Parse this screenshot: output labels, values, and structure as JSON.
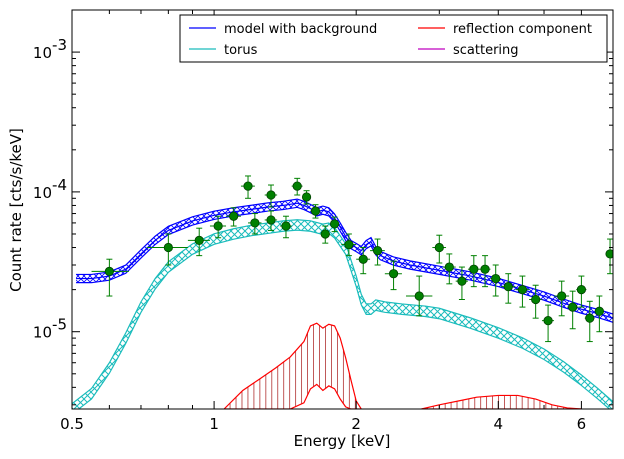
{
  "chart_data": {
    "type": "line",
    "title": "",
    "xlabel": "Energy [keV]",
    "ylabel": "Count rate [cts/s/keV]",
    "xscale": "log",
    "yscale": "log",
    "xlim": [
      0.5,
      7.0
    ],
    "ylim": [
      2.8e-06,
      0.002
    ],
    "x_ticks": [
      0.5,
      1,
      2,
      4,
      6
    ],
    "x_tick_labels": [
      "0.5",
      "1",
      "2",
      "4",
      "6"
    ],
    "y_ticks": [
      1e-05,
      0.0001,
      0.001
    ],
    "y_tick_labels": [
      "10",
      "10",
      "10"
    ],
    "y_tick_exponents": [
      "-5",
      "-4",
      "-3"
    ],
    "grid": false,
    "legend_position": "top-right",
    "legend_columns": 2,
    "colors": {
      "model": "#0000ff",
      "torus": "#1bbcbc",
      "reflection": "#ff0000",
      "scattering": "#bf00bf",
      "data_marker": "#008000",
      "data_edge": "#004000",
      "error_bar": "#008000"
    },
    "series": [
      {
        "name": "model with background",
        "color": "#0000ff",
        "x": [
          0.51,
          0.55,
          0.6,
          0.65,
          0.7,
          0.75,
          0.8,
          0.9,
          1.0,
          1.1,
          1.2,
          1.3,
          1.4,
          1.5,
          1.55,
          1.6,
          1.65,
          1.7,
          1.75,
          1.8,
          1.85,
          1.9,
          1.95,
          2.0,
          2.05,
          2.1,
          2.15,
          2.2,
          2.25,
          2.3,
          2.4,
          2.6,
          3.0,
          3.5,
          4.0,
          4.5,
          5.0,
          5.5,
          6.0,
          6.5,
          7.0
        ],
        "y": [
          2.4e-05,
          2.4e-05,
          2.5e-05,
          2.8e-05,
          3.6e-05,
          4.5e-05,
          5.3e-05,
          6.2e-05,
          6.8e-05,
          7.2e-05,
          7.5e-05,
          7.8e-05,
          8e-05,
          8.3e-05,
          8e-05,
          7.6e-05,
          7.2e-05,
          7.4e-05,
          7.2e-05,
          6.5e-05,
          5.6e-05,
          4.8e-05,
          4.2e-05,
          4e-05,
          3.8e-05,
          4.2e-05,
          4.4e-05,
          3.8e-05,
          3.5e-05,
          3.4e-05,
          3.2e-05,
          3e-05,
          2.75e-05,
          2.5e-05,
          2.25e-05,
          2e-05,
          1.8e-05,
          1.6e-05,
          1.45e-05,
          1.35e-05,
          1.25e-05
        ],
        "band_factor": 1.07
      },
      {
        "name": "torus",
        "color": "#1bbcbc",
        "x": [
          0.5,
          0.55,
          0.6,
          0.65,
          0.7,
          0.75,
          0.8,
          0.9,
          1.0,
          1.1,
          1.2,
          1.3,
          1.4,
          1.5,
          1.6,
          1.7,
          1.75,
          1.8,
          1.9,
          2.0,
          2.05,
          2.1,
          2.15,
          2.2,
          2.3,
          2.5,
          2.8,
          3.0,
          3.5,
          4.0,
          4.5,
          5.0,
          5.5,
          6.0,
          6.5,
          7.0
        ],
        "y": [
          2.8e-06,
          3.6e-06,
          5.5e-06,
          9e-06,
          1.5e-05,
          2.2e-05,
          2.9e-05,
          3.9e-05,
          4.6e-05,
          5e-05,
          5.3e-05,
          5.5e-05,
          5.7e-05,
          5.8e-05,
          5.7e-05,
          5.4e-05,
          5.5e-05,
          5.1e-05,
          3.9e-05,
          2.3e-05,
          1.7e-05,
          1.45e-05,
          1.45e-05,
          1.55e-05,
          1.5e-05,
          1.45e-05,
          1.4e-05,
          1.35e-05,
          1.15e-05,
          9.8e-06,
          8.3e-06,
          6.9e-06,
          5.6e-06,
          4.5e-06,
          3.6e-06,
          2.9e-06
        ],
        "band_factor": 1.09
      },
      {
        "name": "reflection component",
        "color": "#ff0000",
        "segments": [
          {
            "x": [
              1.05,
              1.15,
              1.25,
              1.35,
              1.45,
              1.55,
              1.6,
              1.65,
              1.7,
              1.75,
              1.8,
              1.85,
              1.9,
              1.95,
              2.0,
              2.05
            ],
            "y_upper": [
              2.8e-06,
              3.8e-06,
              4.6e-06,
              5.5e-06,
              6.6e-06,
              8.5e-06,
              1.1e-05,
              1.15e-05,
              1.06e-05,
              1.13e-05,
              1.1e-05,
              9e-06,
              6.5e-06,
              4.5e-06,
              3.2e-06,
              2.8e-06
            ],
            "y_lower": [
              2.8e-06,
              2.8e-06,
              2.8e-06,
              2.8e-06,
              2.8e-06,
              3.1e-06,
              3.9e-06,
              4.2e-06,
              3.8e-06,
              4.1e-06,
              3.9e-06,
              3.3e-06,
              2.9e-06,
              2.8e-06,
              2.8e-06,
              2.8e-06
            ]
          },
          {
            "x": [
              2.75,
              3.0,
              3.3,
              3.6,
              4.0,
              4.4,
              4.8,
              5.2,
              5.6,
              6.0
            ],
            "y_upper": [
              2.8e-06,
              3e-06,
              3.2e-06,
              3.4e-06,
              3.5e-06,
              3.5e-06,
              3.3e-06,
              3e-06,
              2.85e-06,
              2.8e-06
            ],
            "y_lower": [
              2.8e-06,
              2.8e-06,
              2.8e-06,
              2.8e-06,
              2.8e-06,
              2.8e-06,
              2.8e-06,
              2.8e-06,
              2.8e-06,
              2.8e-06
            ]
          }
        ]
      },
      {
        "name": "scattering",
        "color": "#bf00bf",
        "x": [],
        "y": []
      }
    ],
    "data_points": [
      {
        "x": 0.6,
        "y": 2.7e-05,
        "xerr": [
          0.55,
          0.66
        ],
        "yerr": [
          1.8e-05,
          3.3e-05
        ]
      },
      {
        "x": 0.8,
        "y": 4e-05,
        "xerr": [
          0.72,
          0.88
        ],
        "yerr": [
          3e-05,
          5e-05
        ]
      },
      {
        "x": 0.93,
        "y": 4.5e-05,
        "xerr": [
          0.88,
          0.98
        ],
        "yerr": [
          3.5e-05,
          5.5e-05
        ]
      },
      {
        "x": 1.02,
        "y": 5.7e-05,
        "xerr": [
          0.98,
          1.06
        ],
        "yerr": [
          4.7e-05,
          6.7e-05
        ]
      },
      {
        "x": 1.1,
        "y": 6.7e-05,
        "xerr": [
          1.06,
          1.14
        ],
        "yerr": [
          5.7e-05,
          7.7e-05
        ]
      },
      {
        "x": 1.18,
        "y": 0.00011,
        "xerr": [
          1.14,
          1.22
        ],
        "yerr": [
          9e-05,
          0.00013
        ]
      },
      {
        "x": 1.22,
        "y": 6e-05,
        "xerr": [
          1.18,
          1.26
        ],
        "yerr": [
          5e-05,
          7e-05
        ]
      },
      {
        "x": 1.32,
        "y": 6.3e-05,
        "xerr": [
          1.28,
          1.36
        ],
        "yerr": [
          5.3e-05,
          7.3e-05
        ]
      },
      {
        "x": 1.32,
        "y": 9.5e-05,
        "xerr": [
          1.28,
          1.36
        ],
        "yerr": [
          7.8e-05,
          0.000112
        ]
      },
      {
        "x": 1.42,
        "y": 5.7e-05,
        "xerr": [
          1.38,
          1.46
        ],
        "yerr": [
          4.7e-05,
          6.7e-05
        ]
      },
      {
        "x": 1.5,
        "y": 0.00011,
        "xerr": [
          1.46,
          1.54
        ],
        "yerr": [
          9.5e-05,
          0.000125
        ]
      },
      {
        "x": 1.57,
        "y": 9.2e-05,
        "xerr": [
          1.54,
          1.6
        ],
        "yerr": [
          8.2e-05,
          0.000102
        ]
      },
      {
        "x": 1.64,
        "y": 7.3e-05,
        "xerr": [
          1.6,
          1.68
        ],
        "yerr": [
          6.5e-05,
          8.1e-05
        ]
      },
      {
        "x": 1.72,
        "y": 5e-05,
        "xerr": [
          1.68,
          1.76
        ],
        "yerr": [
          4.3e-05,
          5.7e-05
        ]
      },
      {
        "x": 1.8,
        "y": 5.9e-05,
        "xerr": [
          1.76,
          1.84
        ],
        "yerr": [
          5.2e-05,
          6.6e-05
        ]
      },
      {
        "x": 1.93,
        "y": 4.2e-05,
        "xerr": [
          1.86,
          2.0
        ],
        "yerr": [
          3.5e-05,
          5e-05
        ]
      },
      {
        "x": 2.07,
        "y": 3.3e-05,
        "xerr": [
          2.0,
          2.14
        ],
        "yerr": [
          2.6e-05,
          4e-05
        ]
      },
      {
        "x": 2.22,
        "y": 3.8e-05,
        "xerr": [
          2.14,
          2.3
        ],
        "yerr": [
          3e-05,
          4.6e-05
        ]
      },
      {
        "x": 2.4,
        "y": 2.6e-05,
        "xerr": [
          2.3,
          2.5
        ],
        "yerr": [
          2e-05,
          3.2e-05
        ]
      },
      {
        "x": 2.72,
        "y": 1.8e-05,
        "xerr": [
          2.55,
          2.9
        ],
        "yerr": [
          1.3e-05,
          2.5e-05
        ]
      },
      {
        "x": 3.0,
        "y": 4e-05,
        "xerr": [
          2.9,
          3.1
        ],
        "yerr": [
          3.1e-05,
          4.9e-05
        ]
      },
      {
        "x": 3.15,
        "y": 2.9e-05,
        "xerr": [
          3.05,
          3.25
        ],
        "yerr": [
          2.2e-05,
          3.6e-05
        ]
      },
      {
        "x": 3.35,
        "y": 2.3e-05,
        "xerr": [
          3.25,
          3.45
        ],
        "yerr": [
          1.7e-05,
          2.9e-05
        ]
      },
      {
        "x": 3.55,
        "y": 2.8e-05,
        "xerr": [
          3.45,
          3.65
        ],
        "yerr": [
          2.1e-05,
          3.5e-05
        ]
      },
      {
        "x": 3.75,
        "y": 2.8e-05,
        "xerr": [
          3.65,
          3.85
        ],
        "yerr": [
          2.1e-05,
          3.5e-05
        ]
      },
      {
        "x": 3.95,
        "y": 2.4e-05,
        "xerr": [
          3.85,
          4.05
        ],
        "yerr": [
          1.8e-05,
          3e-05
        ]
      },
      {
        "x": 4.2,
        "y": 2.1e-05,
        "xerr": [
          4.05,
          4.35
        ],
        "yerr": [
          1.6e-05,
          2.6e-05
        ]
      },
      {
        "x": 4.5,
        "y": 2e-05,
        "xerr": [
          4.35,
          4.65
        ],
        "yerr": [
          1.5e-05,
          2.5e-05
        ]
      },
      {
        "x": 4.8,
        "y": 1.7e-05,
        "xerr": [
          4.65,
          4.95
        ],
        "yerr": [
          1.25e-05,
          2.15e-05
        ]
      },
      {
        "x": 5.1,
        "y": 1.2e-05,
        "xerr": [
          4.95,
          5.25
        ],
        "yerr": [
          8.5e-06,
          1.55e-05
        ]
      },
      {
        "x": 5.45,
        "y": 1.8e-05,
        "xerr": [
          5.25,
          5.65
        ],
        "yerr": [
          1.3e-05,
          2.3e-05
        ]
      },
      {
        "x": 5.75,
        "y": 1.5e-05,
        "xerr": [
          5.6,
          5.9
        ],
        "yerr": [
          1.05e-05,
          1.95e-05
        ]
      },
      {
        "x": 6.0,
        "y": 2e-05,
        "xerr": [
          5.85,
          6.15
        ],
        "yerr": [
          1.5e-05,
          2.5e-05
        ]
      },
      {
        "x": 6.25,
        "y": 1.25e-05,
        "xerr": [
          6.1,
          6.4
        ],
        "yerr": [
          8.5e-06,
          1.65e-05
        ]
      },
      {
        "x": 6.55,
        "y": 1.4e-05,
        "xerr": [
          6.4,
          6.7
        ],
        "yerr": [
          1e-05,
          1.8e-05
        ]
      },
      {
        "x": 6.9,
        "y": 3.6e-05,
        "xerr": [
          6.75,
          7.0
        ],
        "yerr": [
          2.6e-05,
          4.6e-05
        ]
      }
    ]
  }
}
